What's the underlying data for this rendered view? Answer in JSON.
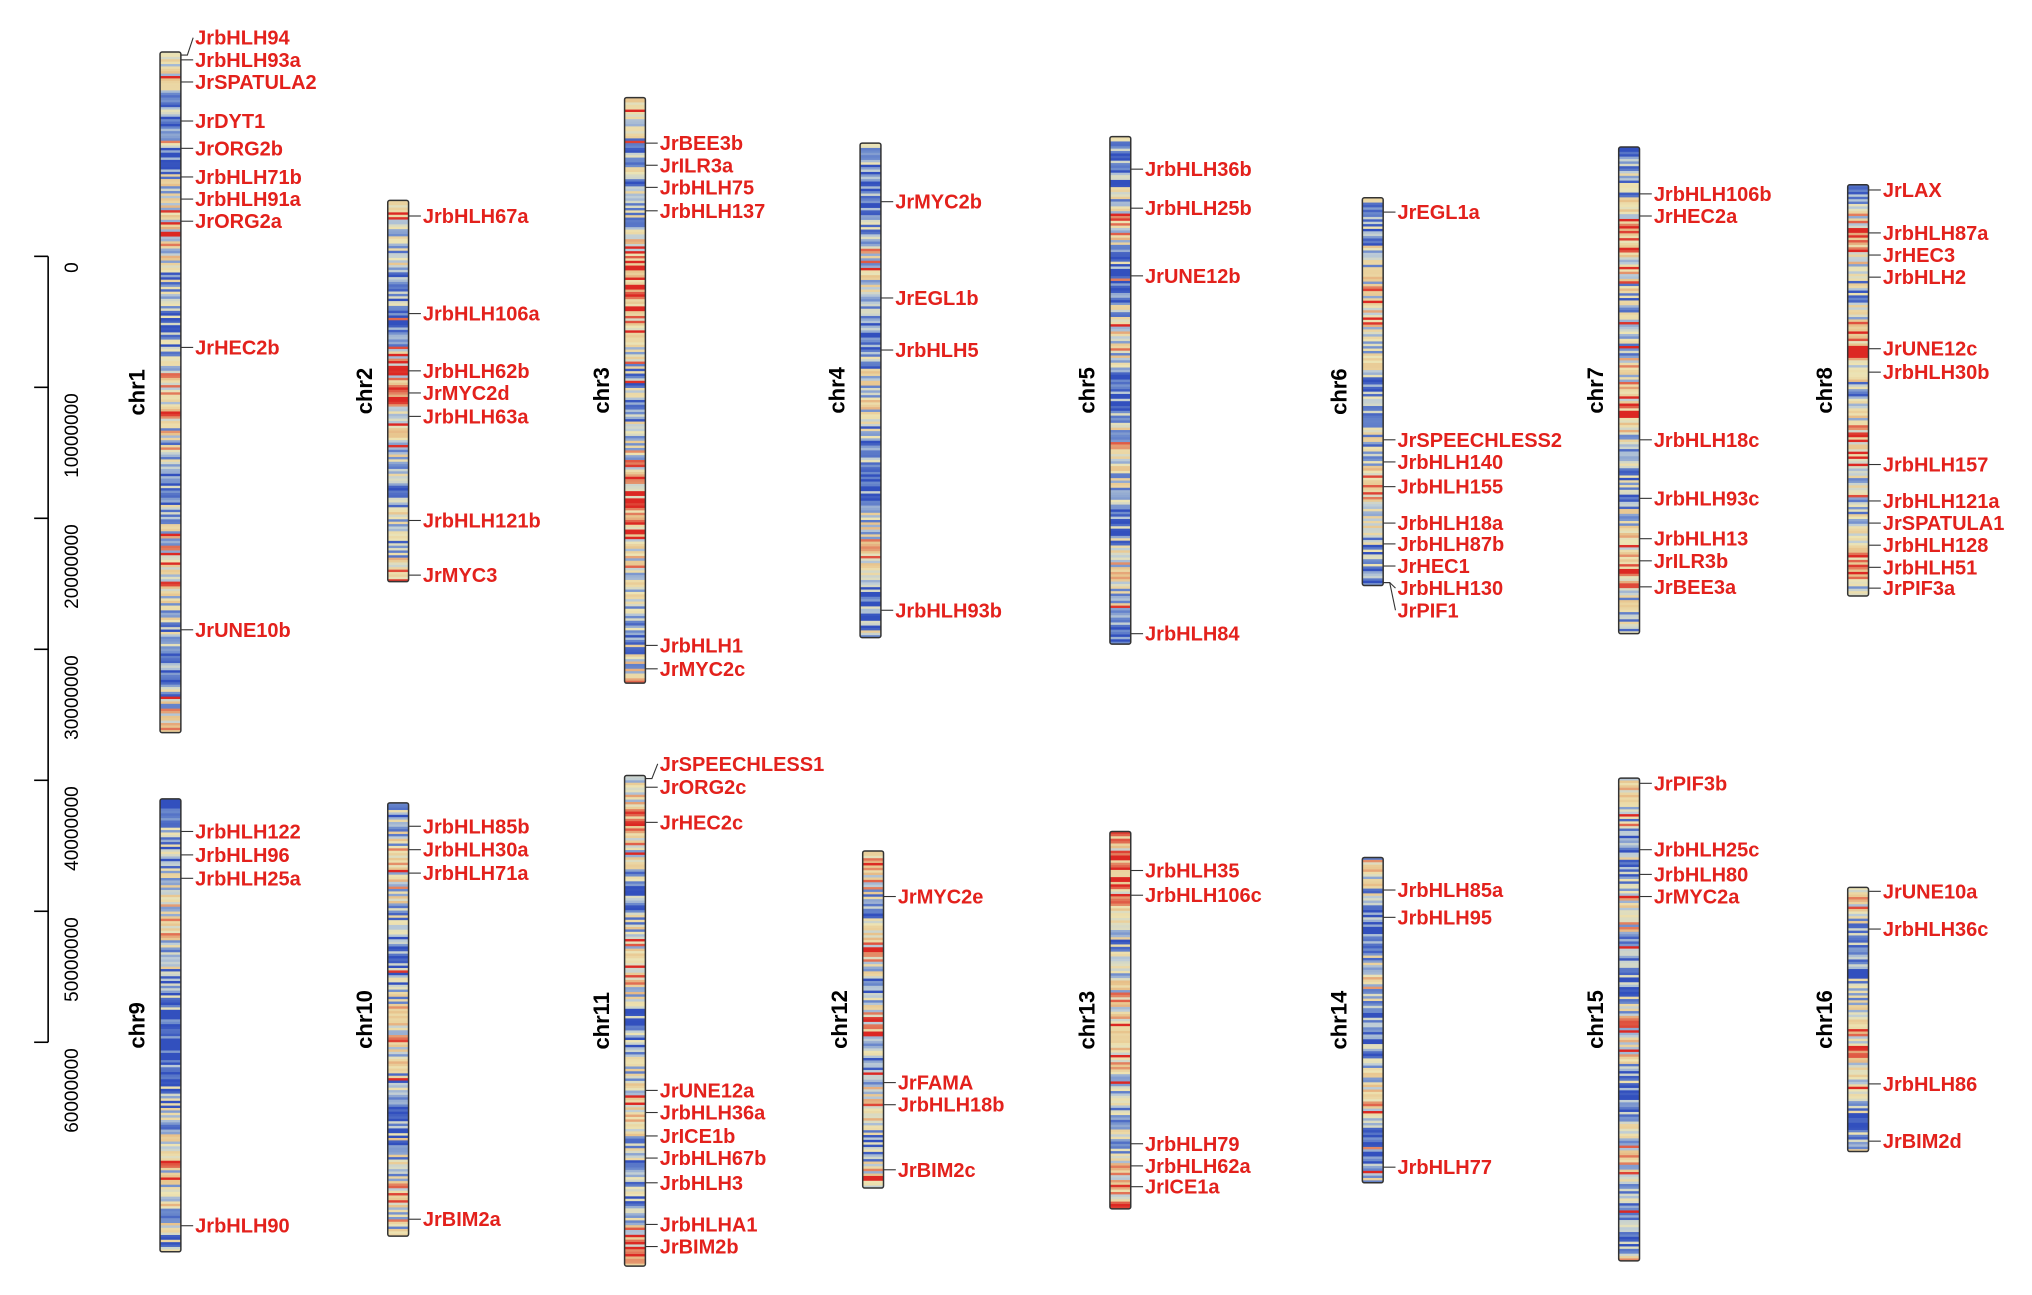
{
  "scale_bar": {
    "ticks": [
      "0",
      "10000000",
      "20000000",
      "30000000",
      "40000000",
      "50000000",
      "60000000"
    ]
  },
  "chromosomes": [
    {
      "name": "chr1",
      "genes": [
        "JrbHLH94",
        "JrbHLH93a",
        "JrSPATULA2",
        "JrDYT1",
        "JrORG2b",
        "JrbHLH71b",
        "JrbHLH91a",
        "JrORG2a",
        "JrHEC2b",
        "JrUNE10b"
      ]
    },
    {
      "name": "chr2",
      "genes": [
        "JrbHLH67a",
        "JrbHLH106a",
        "JrbHLH62b",
        "JrMYC2d",
        "JrbHLH63a",
        "JrbHLH121b",
        "JrMYC3"
      ]
    },
    {
      "name": "chr3",
      "genes": [
        "JrBEE3b",
        "JrILR3a",
        "JrbHLH75",
        "JrbHLH137",
        "JrbHLH1",
        "JrMYC2c"
      ]
    },
    {
      "name": "chr4",
      "genes": [
        "JrMYC2b",
        "JrEGL1b",
        "JrbHLH5",
        "JrbHLH93b"
      ]
    },
    {
      "name": "chr5",
      "genes": [
        "JrbHLH36b",
        "JrbHLH25b",
        "JrUNE12b",
        "JrbHLH84"
      ]
    },
    {
      "name": "chr6",
      "genes": [
        "JrEGL1a",
        "JrSPEECHLESS2",
        "JrbHLH140",
        "JrbHLH155",
        "JrbHLH18a",
        "JrbHLH87b",
        "JrHEC1",
        "JrbHLH130",
        "JrPIF1"
      ]
    },
    {
      "name": "chr7",
      "genes": [
        "JrbHLH106b",
        "JrHEC2a",
        "JrbHLH18c",
        "JrbHLH93c",
        "JrbHLH13",
        "JrILR3b",
        "JrBEE3a"
      ]
    },
    {
      "name": "chr8",
      "genes": [
        "JrLAX",
        "JrbHLH87a",
        "JrHEC3",
        "JrbHLH2",
        "JrUNE12c",
        "JrbHLH30b",
        "JrbHLH157",
        "JrbHLH121a",
        "JrSPATULA1",
        "JrbHLH128",
        "JrbHLH51",
        "JrPIF3a"
      ]
    },
    {
      "name": "chr9",
      "genes": [
        "JrbHLH122",
        "JrbHLH96",
        "JrbHLH25a",
        "JrbHLH90"
      ]
    },
    {
      "name": "chr10",
      "genes": [
        "JrbHLH85b",
        "JrbHLH30a",
        "JrbHLH71a",
        "JrBIM2a"
      ]
    },
    {
      "name": "chr11",
      "genes": [
        "JrSPEECHLESS1",
        "JrORG2c",
        "JrHEC2c",
        "JrUNE12a",
        "JrbHLH36a",
        "JrICE1b",
        "JrbHLH67b",
        "JrbHLH3",
        "JrbHLHA1",
        "JrBIM2b"
      ]
    },
    {
      "name": "chr12",
      "genes": [
        "JrMYC2e",
        "JrFAMA",
        "JrbHLH18b",
        "JrBIM2c"
      ]
    },
    {
      "name": "chr13",
      "genes": [
        "JrbHLH35",
        "JrbHLH106c",
        "JrbHLH79",
        "JrbHLH62a",
        "JrICE1a"
      ]
    },
    {
      "name": "chr14",
      "genes": [
        "JrbHLH85a",
        "JrbHLH95",
        "JrbHLH77"
      ]
    },
    {
      "name": "chr15",
      "genes": [
        "JrPIF3b",
        "JrbHLH25c",
        "JrbHLH80",
        "JrMYC2a"
      ]
    },
    {
      "name": "chr16",
      "genes": [
        "JrUNE10a",
        "JrbHLH36c",
        "JrbHLH86",
        "JrBIM2d"
      ]
    }
  ],
  "colors": {
    "label": "#e3211c",
    "density_low": "#3b5fc0",
    "density_mid": "#ede3b0",
    "density_high": "#e3211c",
    "outline": "#333333"
  }
}
